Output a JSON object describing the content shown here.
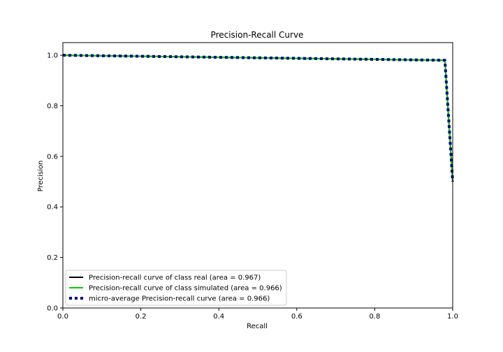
{
  "chart_data": {
    "type": "line",
    "title": "Precision-Recall Curve",
    "xlabel": "Recall",
    "ylabel": "Precision",
    "xlim": [
      0.0,
      1.0
    ],
    "ylim": [
      0.0,
      1.05
    ],
    "xticks": [
      "0.0",
      "0.2",
      "0.4",
      "0.6",
      "0.8",
      "1.0"
    ],
    "yticks": [
      "0.0",
      "0.2",
      "0.4",
      "0.6",
      "0.8",
      "1.0"
    ],
    "grid": false,
    "legend_position": "lower-left",
    "series": [
      {
        "name": "Precision-recall curve of class real (area = 0.967)",
        "color": "#000000",
        "style": "solid",
        "x": [
          0.0,
          0.98,
          1.0
        ],
        "y": [
          1.0,
          0.98,
          0.5
        ]
      },
      {
        "name": "Precision-recall curve of class simulated (area = 0.966)",
        "color": "#00cc00",
        "style": "solid",
        "x": [
          0.0,
          0.98,
          1.0
        ],
        "y": [
          1.0,
          0.98,
          0.5
        ]
      },
      {
        "name": "micro-average Precision-recall curve (area = 0.966)",
        "color": "#000080",
        "style": "dotted",
        "x": [
          0.0,
          0.98,
          1.0
        ],
        "y": [
          1.0,
          0.98,
          0.5
        ]
      }
    ]
  }
}
